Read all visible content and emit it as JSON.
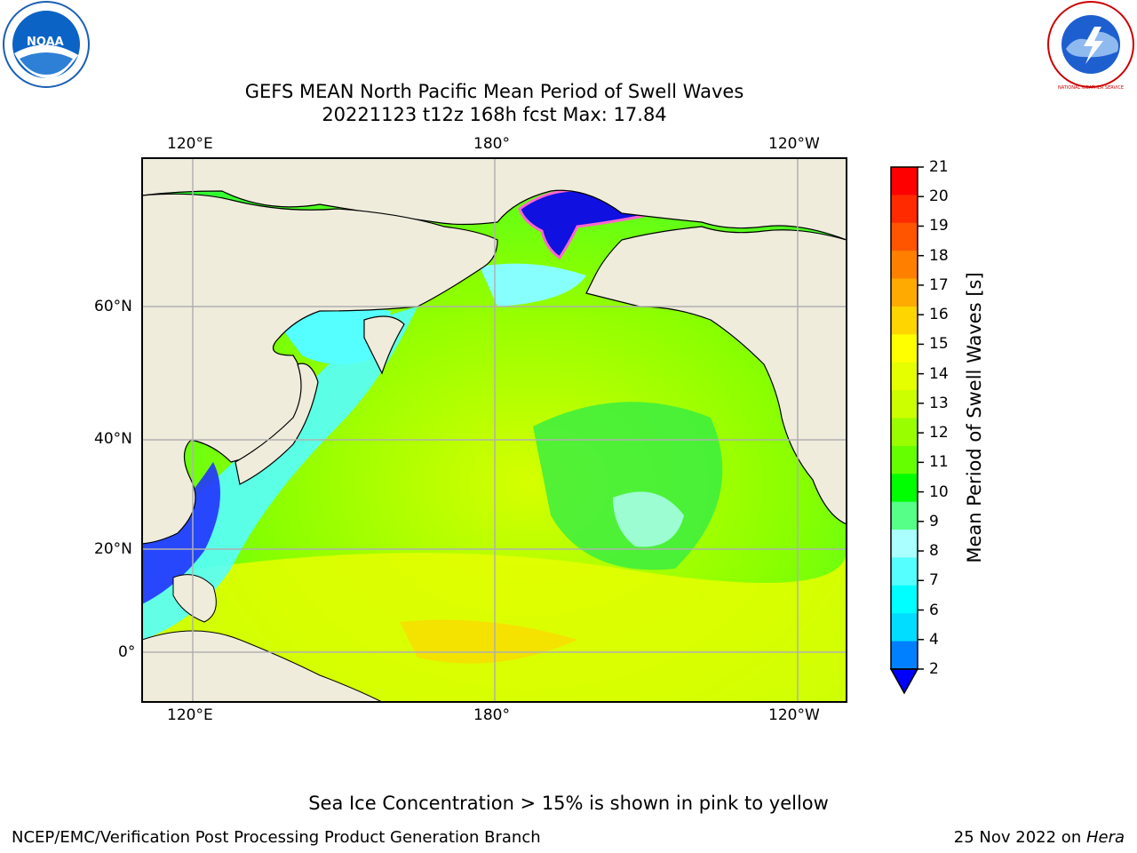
{
  "header": {
    "title_line1": "GEFS MEAN North Pacific Mean Period of Swell Waves",
    "title_line2": "20221123 t12z 168h fcst   Max: 17.84"
  },
  "logos": {
    "noaa": {
      "icon": "noaa-logo",
      "text": "NOAA"
    },
    "nws": {
      "icon": "nws-logo",
      "text": "NATIONAL WEATHER SERVICE"
    }
  },
  "map": {
    "lon_labels_top": [
      "120°E",
      "180°",
      "120°W"
    ],
    "lon_labels_bottom": [
      "120°E",
      "180°",
      "120°W"
    ],
    "lat_labels": [
      "60°N",
      "40°N",
      "20°N",
      "0°"
    ],
    "land_color": "#efecdc",
    "grid_color": "#b0b0b0"
  },
  "colorbar": {
    "label": "Mean Period of Swell Waves [s]",
    "ticks": [
      "21",
      "20",
      "19",
      "18",
      "17",
      "16",
      "15",
      "14",
      "13",
      "12",
      "11",
      "10",
      "9",
      "8",
      "7",
      "6",
      "4",
      "2"
    ],
    "colors": [
      "#ff0000",
      "#ff2a00",
      "#ff5500",
      "#ff8000",
      "#ffaa00",
      "#ffd500",
      "#ffff00",
      "#e6ff00",
      "#ccff00",
      "#99ff00",
      "#66ff00",
      "#00ff00",
      "#55ff88",
      "#aaffff",
      "#55ffff",
      "#00ffff",
      "#00ddff",
      "#0080ff"
    ],
    "under_color": "#0000ff"
  },
  "notes": {
    "ice_note": "Sea Ice Concentration > 15% is shown in pink to yellow"
  },
  "footer": {
    "left": "NCEP/EMC/Verification Post Processing Product Generation Branch",
    "right_date": "25 Nov 2022 on ",
    "right_host": "Hera"
  }
}
